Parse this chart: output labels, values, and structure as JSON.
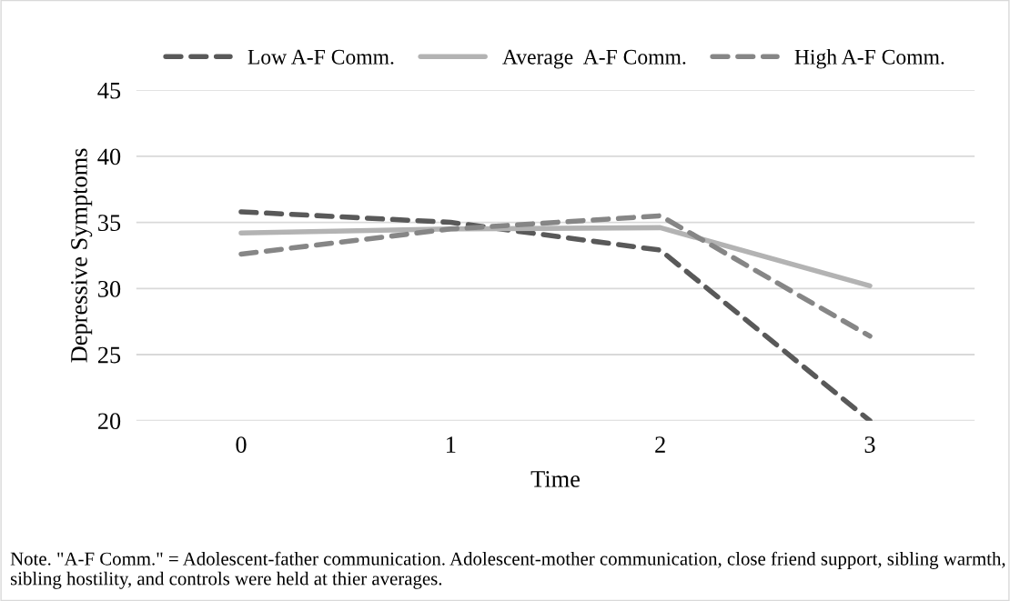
{
  "chart_data": {
    "type": "line",
    "categories": [
      "0",
      "1",
      "2",
      "3"
    ],
    "xlabel": "Time",
    "ylabel": "Depressive Symptoms",
    "ylim": [
      20,
      45
    ],
    "yticks": [
      20,
      25,
      30,
      35,
      40,
      45
    ],
    "grid": "y",
    "legend": "top",
    "marker": "none",
    "series": [
      {
        "name": "Low A-F Comm.",
        "color": "#595959",
        "line_style": "dashed",
        "values": [
          35.8,
          35.0,
          32.9,
          20.0
        ]
      },
      {
        "name": "Average  A-F Comm.",
        "color": "#b3b3b3",
        "line_style": "solid",
        "values": [
          34.2,
          34.5,
          34.6,
          30.2
        ]
      },
      {
        "name": "High A-F Comm.",
        "color": "#868686",
        "line_style": "dashed",
        "values": [
          32.6,
          34.5,
          35.5,
          26.4
        ]
      }
    ],
    "annotations": [
      "Note. \"A-F Comm.\" = Adolescent-father communication. Adolescent-mother communication, close friend support, sibling warmth, sibling hostility, and controls were held at thier averages."
    ]
  }
}
